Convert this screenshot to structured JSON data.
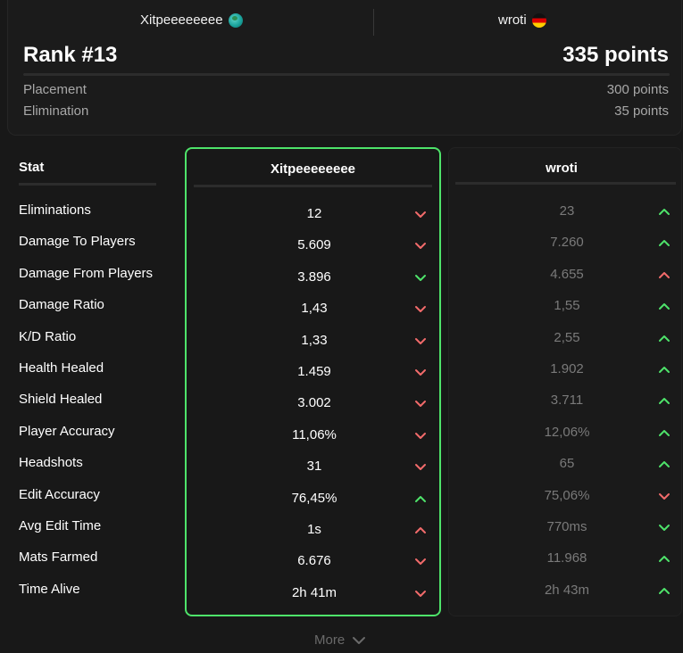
{
  "header": {
    "player_a": {
      "name": "Xitpeeeeeeee",
      "icon": "globe-icon"
    },
    "player_b": {
      "name": "wroti",
      "icon": "germany-flag-icon"
    },
    "rank": "Rank #13",
    "total_points": "335 points",
    "breakdown": [
      {
        "label": "Placement",
        "value": "300 points"
      },
      {
        "label": "Elimination",
        "value": "35 points"
      }
    ]
  },
  "stats": {
    "header": "Stat",
    "col_a_name": "Xitpeeeeeeee",
    "col_b_name": "wroti",
    "rows": [
      {
        "label": "Eliminations",
        "a": "12",
        "a_trend": "down",
        "b": "23",
        "b_trend": "up"
      },
      {
        "label": "Damage To Players",
        "a": "5.609",
        "a_trend": "down",
        "b": "7.260",
        "b_trend": "up"
      },
      {
        "label": "Damage From Players",
        "a": "3.896",
        "a_trend": "good-down",
        "b": "4.655",
        "b_trend": "bad-up"
      },
      {
        "label": "Damage Ratio",
        "a": "1,43",
        "a_trend": "down",
        "b": "1,55",
        "b_trend": "up"
      },
      {
        "label": "K/D Ratio",
        "a": "1,33",
        "a_trend": "down",
        "b": "2,55",
        "b_trend": "up"
      },
      {
        "label": "Health Healed",
        "a": "1.459",
        "a_trend": "down",
        "b": "1.902",
        "b_trend": "up"
      },
      {
        "label": "Shield Healed",
        "a": "3.002",
        "a_trend": "down",
        "b": "3.711",
        "b_trend": "up"
      },
      {
        "label": "Player Accuracy",
        "a": "11,06%",
        "a_trend": "down",
        "b": "12,06%",
        "b_trend": "up"
      },
      {
        "label": "Headshots",
        "a": "31",
        "a_trend": "down",
        "b": "65",
        "b_trend": "up"
      },
      {
        "label": "Edit Accuracy",
        "a": "76,45%",
        "a_trend": "up",
        "b": "75,06%",
        "b_trend": "down"
      },
      {
        "label": "Avg Edit Time",
        "a": "1s",
        "a_trend": "bad-up",
        "b": "770ms",
        "b_trend": "good-down"
      },
      {
        "label": "Mats Farmed",
        "a": "6.676",
        "a_trend": "down",
        "b": "11.968",
        "b_trend": "up"
      },
      {
        "label": "Time Alive",
        "a": "2h 41m",
        "a_trend": "down",
        "b": "2h 43m",
        "b_trend": "up"
      }
    ]
  },
  "more_label": "More",
  "colors": {
    "good": "#4ee36a",
    "bad": "#f26b6b",
    "accent_border": "#4ee36a"
  }
}
